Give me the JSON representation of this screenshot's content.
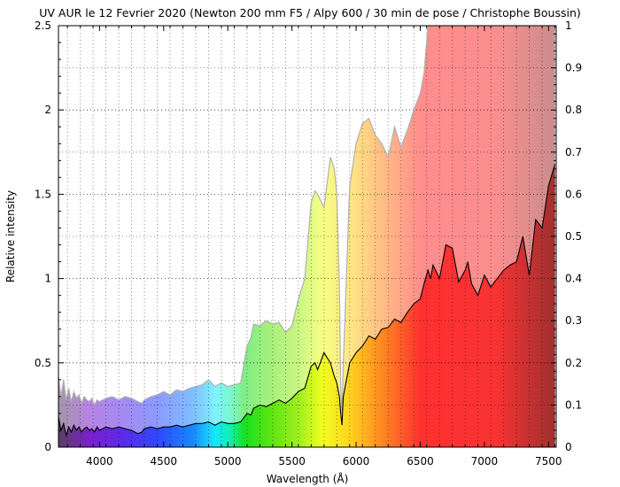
{
  "chart_data": {
    "type": "line",
    "title": "UV AUR le 12 Fevrier 2020 (Newton 200 mm F5 / Alpy 600 / 30 min de pose / Christophe Boussin)",
    "xlabel": "Wavelength (Å)",
    "ylabel": "Relative intensity",
    "xlim": [
      3680,
      7560
    ],
    "ylim": [
      0,
      2.5
    ],
    "y2lim": [
      0,
      1
    ],
    "xticks": [
      "4000",
      "4500",
      "5000",
      "5500",
      "6000",
      "6500",
      "7000",
      "7500"
    ],
    "yticks": [
      "0",
      "0.5",
      "1",
      "1.5",
      "2",
      "2.5"
    ],
    "y2ticks": [
      "0",
      "0.1",
      "0.2",
      "0.3",
      "0.4",
      "0.5",
      "0.6",
      "0.7",
      "0.8",
      "0.9",
      "1"
    ],
    "grid": true,
    "series": [
      {
        "role": "spectrum",
        "color": "#000000",
        "x": [
          3680,
          3700,
          3720,
          3740,
          3760,
          3780,
          3800,
          3820,
          3840,
          3860,
          3880,
          3900,
          3920,
          3940,
          3960,
          3980,
          4000,
          4050,
          4100,
          4150,
          4200,
          4250,
          4300,
          4330,
          4350,
          4400,
          4450,
          4500,
          4550,
          4600,
          4650,
          4700,
          4750,
          4800,
          4850,
          4900,
          4950,
          5000,
          5050,
          5100,
          5150,
          5180,
          5200,
          5250,
          5300,
          5350,
          5400,
          5450,
          5500,
          5550,
          5600,
          5650,
          5680,
          5700,
          5750,
          5800,
          5830,
          5850,
          5870,
          5880,
          5890,
          5900,
          5950,
          6000,
          6050,
          6100,
          6150,
          6200,
          6250,
          6300,
          6350,
          6400,
          6450,
          6500,
          6530,
          6560,
          6580,
          6600,
          6650,
          6700,
          6750,
          6800,
          6850,
          6870,
          6900,
          6950,
          7000,
          7050,
          7100,
          7150,
          7200,
          7250,
          7300,
          7350,
          7400,
          7450,
          7500,
          7550
        ],
        "y": [
          0.18,
          0.1,
          0.14,
          0.07,
          0.12,
          0.09,
          0.13,
          0.1,
          0.12,
          0.09,
          0.11,
          0.12,
          0.1,
          0.11,
          0.09,
          0.12,
          0.1,
          0.12,
          0.11,
          0.12,
          0.11,
          0.1,
          0.08,
          0.09,
          0.11,
          0.12,
          0.11,
          0.12,
          0.12,
          0.13,
          0.12,
          0.13,
          0.14,
          0.14,
          0.15,
          0.13,
          0.15,
          0.14,
          0.14,
          0.15,
          0.2,
          0.19,
          0.23,
          0.25,
          0.24,
          0.26,
          0.28,
          0.26,
          0.29,
          0.33,
          0.35,
          0.48,
          0.5,
          0.46,
          0.56,
          0.5,
          0.42,
          0.38,
          0.3,
          0.2,
          0.13,
          0.3,
          0.5,
          0.56,
          0.6,
          0.66,
          0.64,
          0.7,
          0.71,
          0.76,
          0.74,
          0.8,
          0.85,
          0.88,
          0.97,
          1.05,
          1.0,
          1.08,
          1.0,
          1.2,
          1.18,
          0.98,
          1.05,
          1.1,
          0.97,
          0.9,
          1.02,
          0.95,
          1.0,
          1.05,
          1.08,
          1.1,
          1.25,
          1.02,
          1.35,
          1.3,
          1.55,
          1.68
        ]
      },
      {
        "role": "normalized",
        "color": "#b0b0b0",
        "x": [
          3680,
          3700,
          3720,
          3740,
          3760,
          3780,
          3800,
          3820,
          3840,
          3860,
          3880,
          3900,
          3920,
          3940,
          3960,
          3980,
          4000,
          4050,
          4100,
          4150,
          4200,
          4250,
          4300,
          4330,
          4350,
          4400,
          4450,
          4500,
          4550,
          4600,
          4650,
          4700,
          4750,
          4800,
          4850,
          4900,
          4950,
          5000,
          5050,
          5100,
          5150,
          5180,
          5200,
          5250,
          5300,
          5350,
          5400,
          5450,
          5500,
          5550,
          5600,
          5650,
          5680,
          5700,
          5750,
          5800,
          5830,
          5850,
          5870,
          5880,
          5890,
          5900,
          5950,
          6000,
          6050,
          6100,
          6150,
          6200,
          6250,
          6300,
          6350,
          6400,
          6450,
          6500,
          6530,
          6560,
          6580,
          6600,
          6650,
          6700,
          6750,
          6800,
          6850,
          6870,
          6900,
          6950,
          7000,
          7050,
          7100,
          7150,
          7200,
          7250,
          7300,
          7350,
          7400,
          7450,
          7500,
          7550
        ],
        "y": [
          0.42,
          0.3,
          0.4,
          0.28,
          0.35,
          0.27,
          0.33,
          0.29,
          0.31,
          0.26,
          0.3,
          0.28,
          0.27,
          0.29,
          0.25,
          0.28,
          0.27,
          0.29,
          0.3,
          0.28,
          0.3,
          0.29,
          0.27,
          0.26,
          0.28,
          0.3,
          0.31,
          0.33,
          0.31,
          0.34,
          0.33,
          0.35,
          0.36,
          0.37,
          0.4,
          0.36,
          0.38,
          0.36,
          0.37,
          0.38,
          0.6,
          0.65,
          0.73,
          0.72,
          0.75,
          0.73,
          0.74,
          0.68,
          0.72,
          0.88,
          1.0,
          1.45,
          1.52,
          1.5,
          1.42,
          1.72,
          1.65,
          1.5,
          0.95,
          0.35,
          0.2,
          0.5,
          1.55,
          1.8,
          1.92,
          1.95,
          1.85,
          1.8,
          1.72,
          1.9,
          1.78,
          1.88,
          2.0,
          2.1,
          2.22,
          2.5,
          2.5,
          2.5,
          2.5,
          2.5,
          2.5,
          2.5,
          2.5,
          2.5,
          2.5,
          2.5,
          2.5,
          2.5,
          2.5,
          2.5,
          2.5,
          2.5,
          2.5,
          2.5,
          2.5,
          2.5,
          2.5,
          2.5
        ]
      }
    ]
  }
}
